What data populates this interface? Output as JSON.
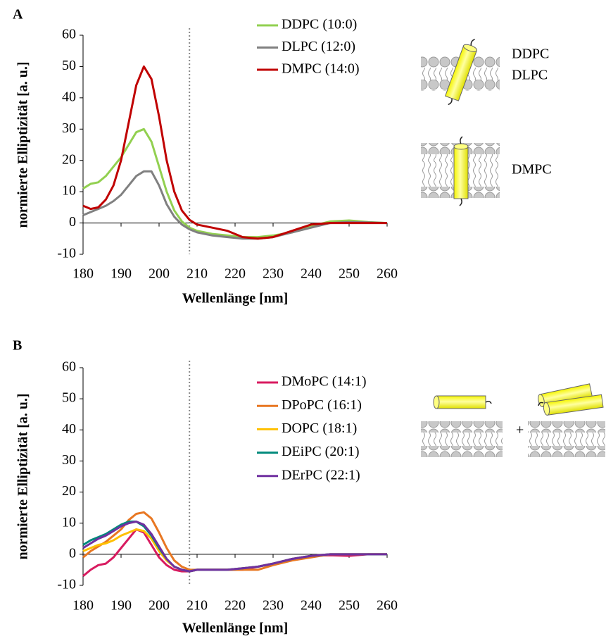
{
  "chart_data": [
    {
      "type": "line",
      "panel_label": "A",
      "xlabel": "Wellenlänge [nm]",
      "ylabel": "normierte Elliptizität [a. u.]",
      "xlim": [
        180,
        260
      ],
      "ylim": [
        -10,
        60
      ],
      "xticks": [
        180,
        190,
        200,
        210,
        220,
        230,
        240,
        250,
        260
      ],
      "yticks": [
        -10,
        0,
        10,
        20,
        30,
        40,
        50,
        60
      ],
      "vline": 208,
      "x": [
        180,
        182,
        184,
        186,
        188,
        190,
        192,
        194,
        196,
        198,
        200,
        202,
        204,
        206,
        208,
        210,
        214,
        218,
        222,
        226,
        230,
        235,
        240,
        245,
        250,
        255,
        260
      ],
      "series": [
        {
          "name": "DDPC (10:0)",
          "color": "#92d050",
          "values": [
            11,
            12.5,
            13,
            15,
            18,
            21,
            25,
            29,
            30,
            26,
            18,
            10,
            4,
            0.5,
            -1.5,
            -2.5,
            -3.5,
            -4,
            -4.5,
            -4.5,
            -4,
            -3,
            -1,
            0.5,
            0.8,
            0.3,
            0
          ]
        },
        {
          "name": "DLPC (12:0)",
          "color": "#808080",
          "values": [
            2.5,
            3.5,
            4.5,
            5.5,
            7,
            9,
            12,
            15,
            16.5,
            16.5,
            12,
            6,
            2,
            -0.5,
            -2,
            -3,
            -4,
            -4.5,
            -5,
            -5,
            -4.5,
            -3,
            -1.5,
            0,
            0.3,
            0.2,
            0
          ]
        },
        {
          "name": "DMPC (14:0)",
          "color": "#c00000",
          "values": [
            5.5,
            4.5,
            5,
            7.5,
            12,
            20,
            32,
            44,
            50,
            46,
            34,
            20,
            10,
            4,
            1,
            -0.5,
            -1.5,
            -2.5,
            -4.5,
            -5,
            -4.5,
            -2.5,
            -0.5,
            0,
            0,
            0,
            0
          ]
        }
      ],
      "diagram_labels": [
        "DDPC",
        "DLPC",
        "DMPC"
      ]
    },
    {
      "type": "line",
      "panel_label": "B",
      "xlabel": "Wellenlänge [nm]",
      "ylabel": "normierte Elliptizität [a. u.]",
      "xlim": [
        180,
        260
      ],
      "ylim": [
        -10,
        60
      ],
      "xticks": [
        180,
        190,
        200,
        210,
        220,
        230,
        240,
        250,
        260
      ],
      "yticks": [
        -10,
        0,
        10,
        20,
        30,
        40,
        50,
        60
      ],
      "vline": 208,
      "x": [
        180,
        182,
        184,
        186,
        188,
        190,
        192,
        194,
        196,
        198,
        200,
        202,
        204,
        206,
        208,
        210,
        214,
        218,
        222,
        226,
        230,
        235,
        240,
        245,
        250,
        255,
        260
      ],
      "series": [
        {
          "name": "DMoPC (14:1)",
          "color": "#d81b60",
          "values": [
            -7,
            -5,
            -3.5,
            -3,
            -1,
            2,
            5,
            8,
            7,
            3,
            -1,
            -3.5,
            -5,
            -5.5,
            -5.5,
            -5,
            -5,
            -5,
            -5,
            -4,
            -3,
            -1.5,
            -0.5,
            -0.3,
            -0.5,
            0,
            0
          ]
        },
        {
          "name": "DPoPC (16:1)",
          "color": "#e87722",
          "values": [
            -1,
            1,
            2.5,
            4,
            6,
            8,
            11,
            13,
            13.5,
            11.5,
            7,
            2,
            -2,
            -4,
            -5,
            -5,
            -5,
            -5,
            -5,
            -5,
            -3.5,
            -2,
            -1,
            0,
            0,
            0,
            0
          ]
        },
        {
          "name": "DOPC (18:1)",
          "color": "#ffc000",
          "values": [
            1,
            2,
            3,
            3.5,
            4.5,
            6,
            7,
            8,
            7.5,
            5,
            1,
            -2,
            -4,
            -5,
            -5.5,
            -5,
            -5,
            -5,
            -4.5,
            -4,
            -3,
            -1.5,
            -0.5,
            0,
            0,
            0,
            0
          ]
        },
        {
          "name": "DEiPC (20:1)",
          "color": "#00897b",
          "values": [
            3,
            4.5,
            5.5,
            6.5,
            8,
            9.5,
            10.5,
            10.5,
            9,
            6,
            2,
            -1.5,
            -4,
            -5,
            -5.5,
            -5,
            -5,
            -5,
            -4.5,
            -4,
            -3,
            -1.5,
            -0.5,
            0,
            0,
            0,
            0
          ]
        },
        {
          "name": "DErPC (22:1)",
          "color": "#7030a0",
          "values": [
            2,
            3.5,
            5,
            6,
            7.5,
            9,
            10,
            10.5,
            9.5,
            6.5,
            2.5,
            -1.5,
            -4,
            -5,
            -5.5,
            -5,
            -5,
            -5,
            -4.5,
            -4,
            -3,
            -1.5,
            -0.5,
            0,
            0,
            0,
            0
          ]
        }
      ],
      "diagram_labels": [
        "+"
      ]
    }
  ]
}
